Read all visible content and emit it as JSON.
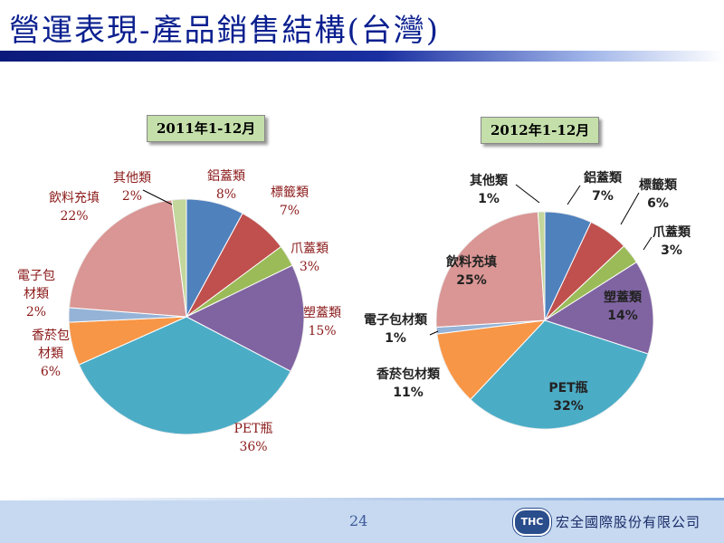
{
  "header": {
    "title": "營運表現-產品銷售結構(台灣)"
  },
  "footer": {
    "page_number": "24",
    "logo_text": "THC",
    "company": "宏全國際股份有限公司"
  },
  "chart_data": [
    {
      "type": "pie",
      "title": "2011年1-12月",
      "slices": [
        {
          "label": "鋁蓋類",
          "value": 8,
          "display": "8%",
          "color": "#4f81bd"
        },
        {
          "label": "標籤類",
          "value": 7,
          "display": "7%",
          "color": "#c0504d"
        },
        {
          "label": "爪蓋類",
          "value": 3,
          "display": "3%",
          "color": "#9bbb59"
        },
        {
          "label": "塑蓋類",
          "value": 15,
          "display": "15%",
          "color": "#8064a2"
        },
        {
          "label": "PET瓶",
          "value": 36,
          "display": "36%",
          "color": "#4bacc6"
        },
        {
          "label": "香菸包材類",
          "value": 6,
          "display": "6%",
          "color": "#f79646"
        },
        {
          "label": "電子包材類",
          "value": 2,
          "display": "2%",
          "color": "#95b3d7"
        },
        {
          "label": "飲料充填",
          "value": 22,
          "display": "22%",
          "color": "#d99694"
        },
        {
          "label": "其他類",
          "value": 2,
          "display": "2%",
          "color": "#c3d69b"
        }
      ]
    },
    {
      "type": "pie",
      "title": "2012年1-12月",
      "slices": [
        {
          "label": "鋁蓋類",
          "value": 7,
          "display": "7%",
          "color": "#4f81bd"
        },
        {
          "label": "標籤類",
          "value": 6,
          "display": "6%",
          "color": "#c0504d"
        },
        {
          "label": "爪蓋類",
          "value": 3,
          "display": "3%",
          "color": "#9bbb59"
        },
        {
          "label": "塑蓋類",
          "value": 14,
          "display": "14%",
          "color": "#8064a2"
        },
        {
          "label": "PET瓶",
          "value": 32,
          "display": "32%",
          "color": "#4bacc6"
        },
        {
          "label": "香菸包材類",
          "value": 11,
          "display": "11%",
          "color": "#f79646"
        },
        {
          "label": "電子包材類",
          "value": 1,
          "display": "1%",
          "color": "#95b3d7"
        },
        {
          "label": "飲料充填",
          "value": 25,
          "display": "25%",
          "color": "#d99694"
        },
        {
          "label": "其他類",
          "value": 1,
          "display": "1%",
          "color": "#c3d69b"
        }
      ]
    }
  ]
}
